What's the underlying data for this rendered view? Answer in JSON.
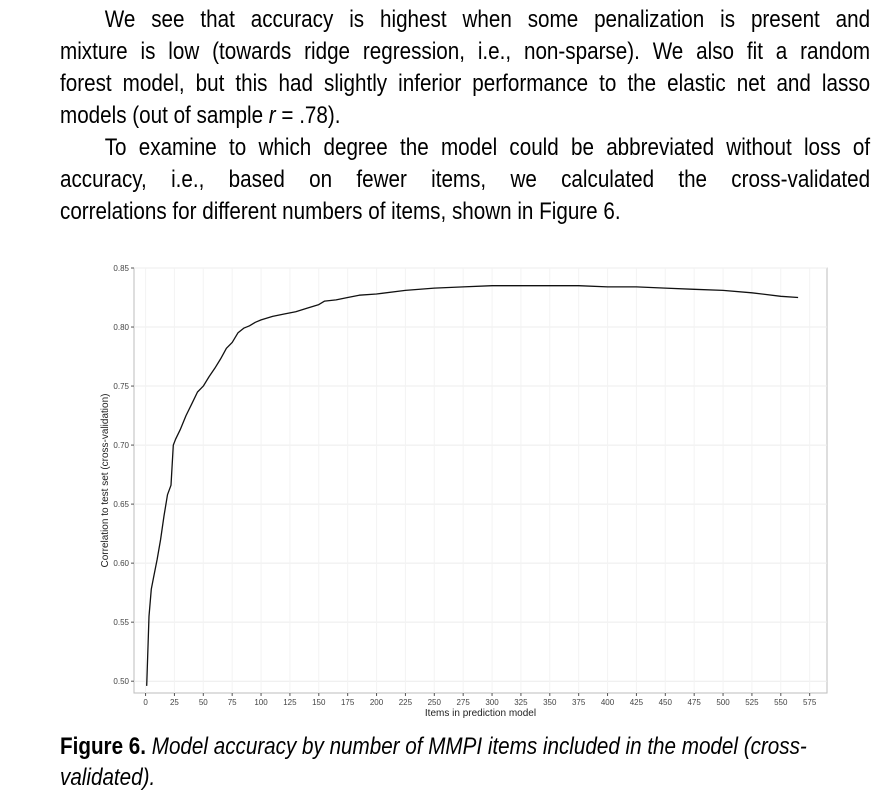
{
  "paragraphs": {
    "p1_lines": [
      "We see that accuracy is highest when some penalization is present and",
      "mixture is low (towards ridge regression, i.e., non-sparse). We also fit a random",
      "forest model, but this had slightly inferior performance to the elastic net and lasso"
    ],
    "p1_last_prefix": "models (out of sample ",
    "p1_last_italic": "r",
    "p1_last_suffix": " = .78).",
    "p2_lines": [
      "To examine to which degree the model could be abbreviated without loss of",
      "accuracy, i.e., based on fewer items, we calculated the cross-validated"
    ],
    "p2_last": "correlations for different numbers of items, shown in Figure 6."
  },
  "caption": {
    "label": "Figure 6.",
    "text": "Model accuracy by number of MMPI items included in the model (cross-validated)."
  },
  "chart_data": {
    "type": "line",
    "xlabel": "Items in prediction model",
    "ylabel": "Correlation to test set (cross-validation)",
    "xlim": [
      -10,
      590
    ],
    "ylim": [
      0.49,
      0.85
    ],
    "xticks": [
      0,
      25,
      50,
      75,
      100,
      125,
      150,
      175,
      200,
      225,
      250,
      275,
      300,
      325,
      350,
      375,
      400,
      425,
      450,
      475,
      500,
      525,
      550,
      575
    ],
    "yticks": [
      "0.50",
      "0.55",
      "0.60",
      "0.65",
      "0.70",
      "0.75",
      "0.80",
      "0.85"
    ],
    "grid": true,
    "series": [
      {
        "x": [
          1,
          3,
          5,
          7,
          10,
          13,
          16,
          19,
          22,
          24,
          26,
          30,
          35,
          40,
          45,
          48,
          50,
          55,
          60,
          65,
          70,
          75,
          80,
          85,
          90,
          95,
          100,
          110,
          120,
          130,
          140,
          150,
          155,
          165,
          175,
          185,
          200,
          225,
          250,
          275,
          300,
          325,
          350,
          375,
          400,
          425,
          450,
          475,
          500,
          525,
          550,
          565
        ],
        "y": [
          0.496,
          0.555,
          0.578,
          0.588,
          0.603,
          0.62,
          0.64,
          0.658,
          0.666,
          0.7,
          0.705,
          0.713,
          0.725,
          0.735,
          0.745,
          0.748,
          0.75,
          0.758,
          0.765,
          0.773,
          0.782,
          0.787,
          0.795,
          0.799,
          0.801,
          0.804,
          0.806,
          0.809,
          0.811,
          0.813,
          0.816,
          0.819,
          0.822,
          0.823,
          0.825,
          0.827,
          0.828,
          0.831,
          0.833,
          0.834,
          0.835,
          0.835,
          0.835,
          0.835,
          0.834,
          0.834,
          0.833,
          0.832,
          0.831,
          0.829,
          0.826,
          0.825
        ]
      }
    ]
  }
}
